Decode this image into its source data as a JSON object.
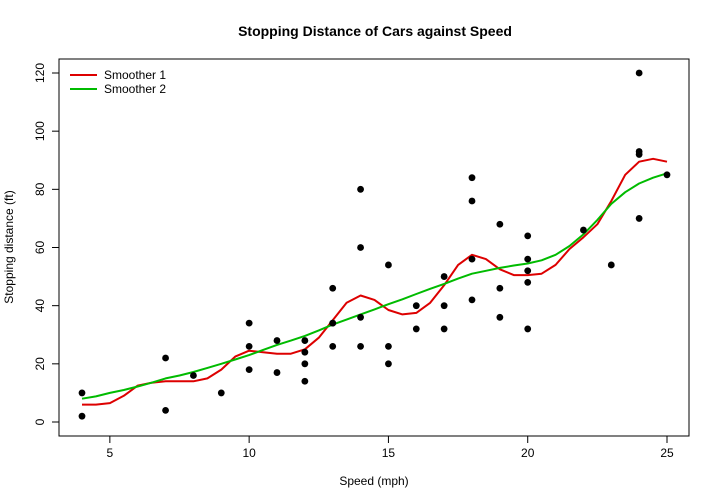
{
  "chart_data": {
    "type": "scatter",
    "title": "Stopping Distance of Cars against Speed",
    "xlabel": "Speed (mph)",
    "ylabel": "Stopping distance (ft)",
    "xlim": [
      4,
      25
    ],
    "ylim": [
      0,
      120
    ],
    "xticks": [
      5,
      10,
      15,
      20,
      25
    ],
    "yticks": [
      0,
      20,
      40,
      60,
      80,
      100,
      120
    ],
    "grid": false,
    "legend_position": "top-left",
    "points": {
      "color": "#000000",
      "x": [
        4,
        4,
        7,
        7,
        8,
        9,
        10,
        10,
        10,
        11,
        11,
        12,
        12,
        12,
        12,
        13,
        13,
        13,
        13,
        14,
        14,
        14,
        14,
        15,
        15,
        15,
        16,
        16,
        17,
        17,
        17,
        18,
        18,
        18,
        18,
        19,
        19,
        19,
        20,
        20,
        20,
        20,
        20,
        22,
        23,
        24,
        24,
        24,
        24,
        25
      ],
      "y": [
        2,
        10,
        4,
        22,
        16,
        10,
        18,
        26,
        34,
        17,
        28,
        14,
        20,
        24,
        28,
        26,
        34,
        34,
        46,
        26,
        36,
        60,
        80,
        20,
        26,
        54,
        32,
        40,
        32,
        40,
        50,
        42,
        56,
        76,
        84,
        36,
        46,
        68,
        32,
        48,
        52,
        56,
        64,
        66,
        54,
        70,
        92,
        93,
        120,
        85
      ]
    },
    "series": [
      {
        "name": "Smoother 1",
        "color": "#dd0000",
        "x": [
          4,
          4.5,
          5,
          5.5,
          6,
          6.5,
          7,
          7.5,
          8,
          8.5,
          9,
          9.5,
          10,
          10.5,
          11,
          11.5,
          12,
          12.5,
          13,
          13.5,
          14,
          14.5,
          15,
          15.5,
          16,
          16.5,
          17,
          17.5,
          18,
          18.5,
          19,
          19.5,
          20,
          20.5,
          21,
          21.5,
          22,
          22.5,
          23,
          23.5,
          24,
          24.5,
          25
        ],
        "y": [
          6,
          6,
          6.5,
          9,
          12.5,
          13.5,
          14,
          14,
          14,
          15,
          18,
          22.5,
          24.5,
          24,
          23.5,
          23.5,
          25,
          29,
          35,
          41,
          43.5,
          42,
          38.5,
          37,
          37.5,
          41,
          47,
          54,
          57.5,
          56,
          52.5,
          50.5,
          50.5,
          51,
          54,
          59.5,
          63.5,
          68,
          76,
          85,
          89.5,
          90.5,
          89.5
        ]
      },
      {
        "name": "Smoother 2",
        "color": "#00bb00",
        "x": [
          4,
          4.5,
          5,
          5.5,
          6,
          6.5,
          7,
          7.5,
          8,
          8.5,
          9,
          9.5,
          10,
          10.5,
          11,
          11.5,
          12,
          12.5,
          13,
          13.5,
          14,
          14.5,
          15,
          15.5,
          16,
          16.5,
          17,
          17.5,
          18,
          18.5,
          19,
          19.5,
          20,
          20.5,
          21,
          21.5,
          22,
          22.5,
          23,
          23.5,
          24,
          24.5,
          25
        ],
        "y": [
          8,
          8.8,
          10,
          11,
          12.2,
          13.5,
          15,
          16,
          17.2,
          18.6,
          20,
          21.5,
          23,
          24.8,
          26.5,
          28,
          29.6,
          31.5,
          33.5,
          35.2,
          37,
          38.7,
          40.5,
          42.2,
          44,
          45.8,
          47.5,
          49.3,
          51,
          52,
          53,
          53.8,
          54.5,
          55.6,
          57.5,
          60.5,
          64.5,
          69.5,
          75,
          79,
          82,
          84,
          85.5
        ]
      }
    ]
  }
}
